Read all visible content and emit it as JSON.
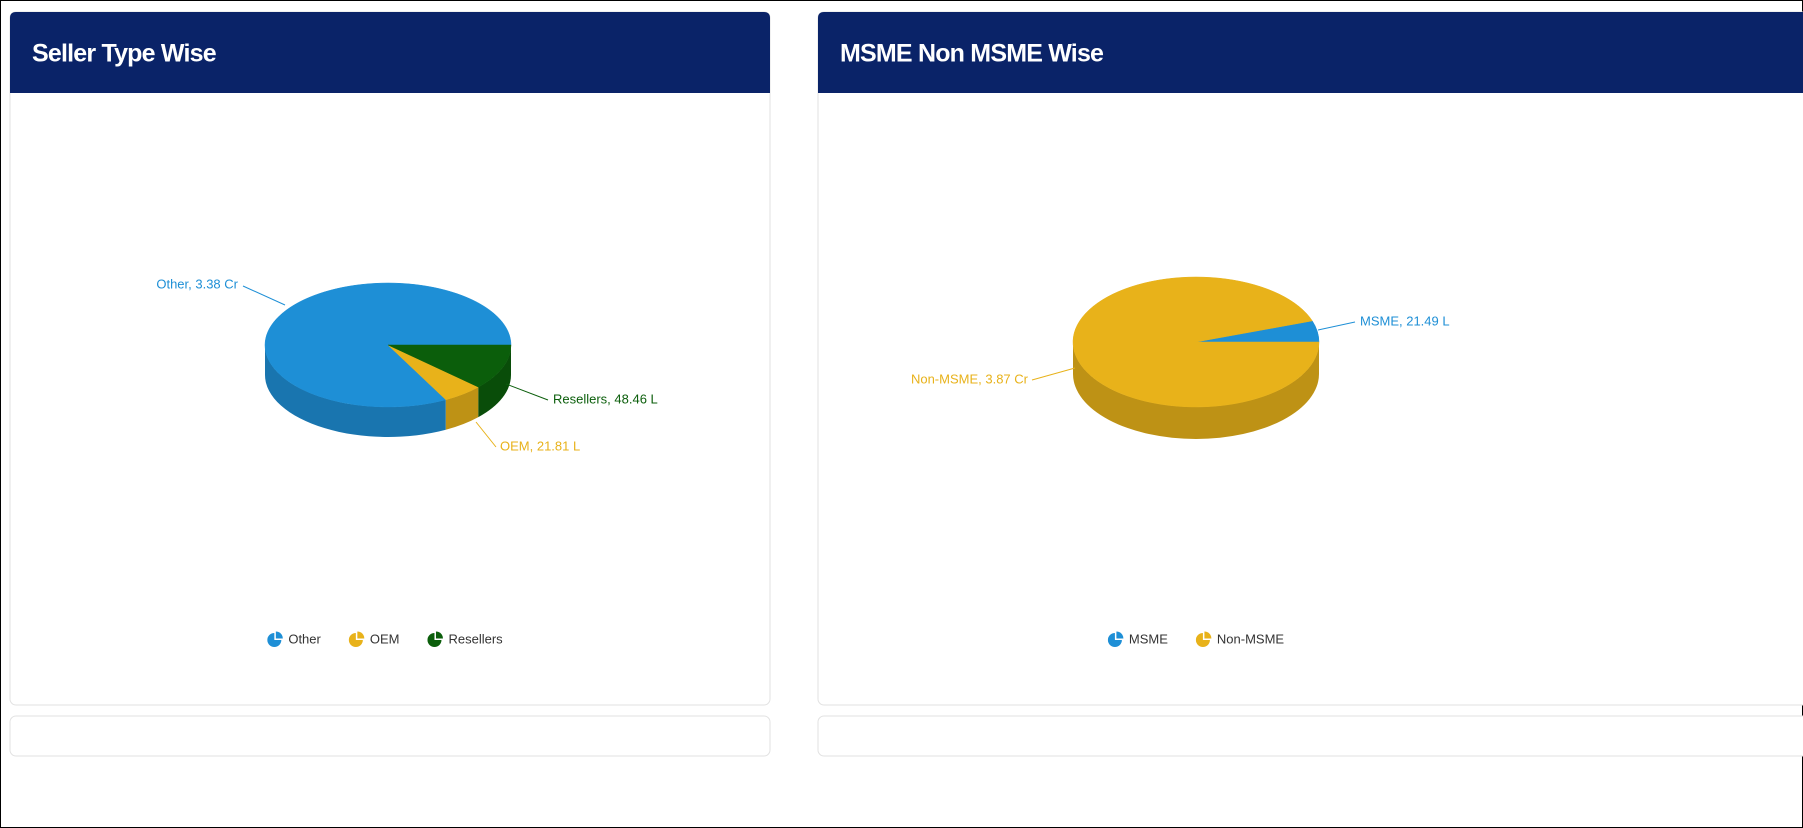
{
  "chart_data": [
    {
      "type": "pie3d",
      "title": "Seller Type Wise",
      "categories": [
        "Other",
        "OEM",
        "Resellers"
      ],
      "values": [
        33800000,
        2181000,
        4846000
      ],
      "value_labels": [
        "Other, 3.38 Cr",
        "OEM, 21.81 L",
        "Resellers, 48.46 L"
      ],
      "colors": [
        "#1e8fd6",
        "#e8b21a",
        "#0b5e0b"
      ]
    },
    {
      "type": "pie3d",
      "title": "MSME Non MSME Wise",
      "categories": [
        "MSME",
        "Non-MSME"
      ],
      "values": [
        2149000,
        38700000
      ],
      "value_labels": [
        "MSME, 21.49 L",
        "Non-MSME, 3.87 Cr"
      ],
      "colors": [
        "#1e8fd6",
        "#e8b21a"
      ]
    }
  ]
}
